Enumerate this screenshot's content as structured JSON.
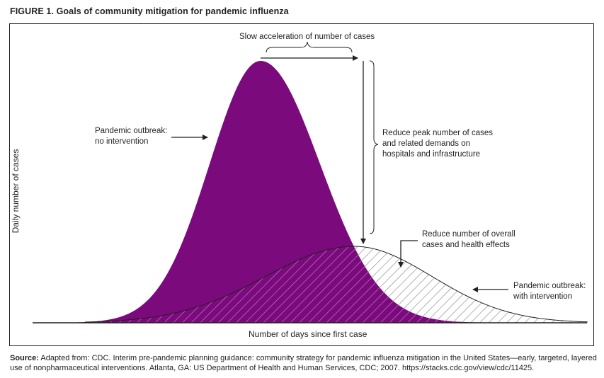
{
  "figure": {
    "title": "FIGURE 1. Goals of community mitigation for pandemic influenza"
  },
  "annotations": {
    "slow_acceleration": "Slow acceleration of number of cases",
    "no_intervention_line1": "Pandemic outbreak:",
    "no_intervention_line2": "no intervention",
    "reduce_peak_line1": "Reduce peak number of cases",
    "reduce_peak_line2": "and related demands on",
    "reduce_peak_line3": "hospitals and infrastructure",
    "reduce_overall_line1": "Reduce number of overall",
    "reduce_overall_line2": "cases and health effects",
    "with_intervention_line1": "Pandemic outbreak:",
    "with_intervention_line2": "with intervention"
  },
  "axes": {
    "ylabel": "Daily number of cases",
    "xlabel": "Number of days since first case"
  },
  "source": {
    "label": "Source:",
    "text": "Adapted from: CDC. Interim pre-pandemic planning guidance: community strategy for pandemic influenza mitigation in the United States—early, targeted, layered use of nonpharmaceutical interventions. Atlanta, GA: US Department of Health and Human Services, CDC; 2007. https://stacks.cdc.gov/view/cdc/11425."
  },
  "colors": {
    "no_intervention_fill": "#7b0a7d",
    "hatch": "#9e9ea4",
    "ink": "#231f20"
  },
  "chart_data": {
    "type": "area",
    "series": [
      {
        "role": "no-intervention",
        "shape": "tall narrow epidemic curve"
      },
      {
        "role": "with-intervention",
        "shape": "lower, wider, delayed epidemic curve"
      }
    ]
  }
}
